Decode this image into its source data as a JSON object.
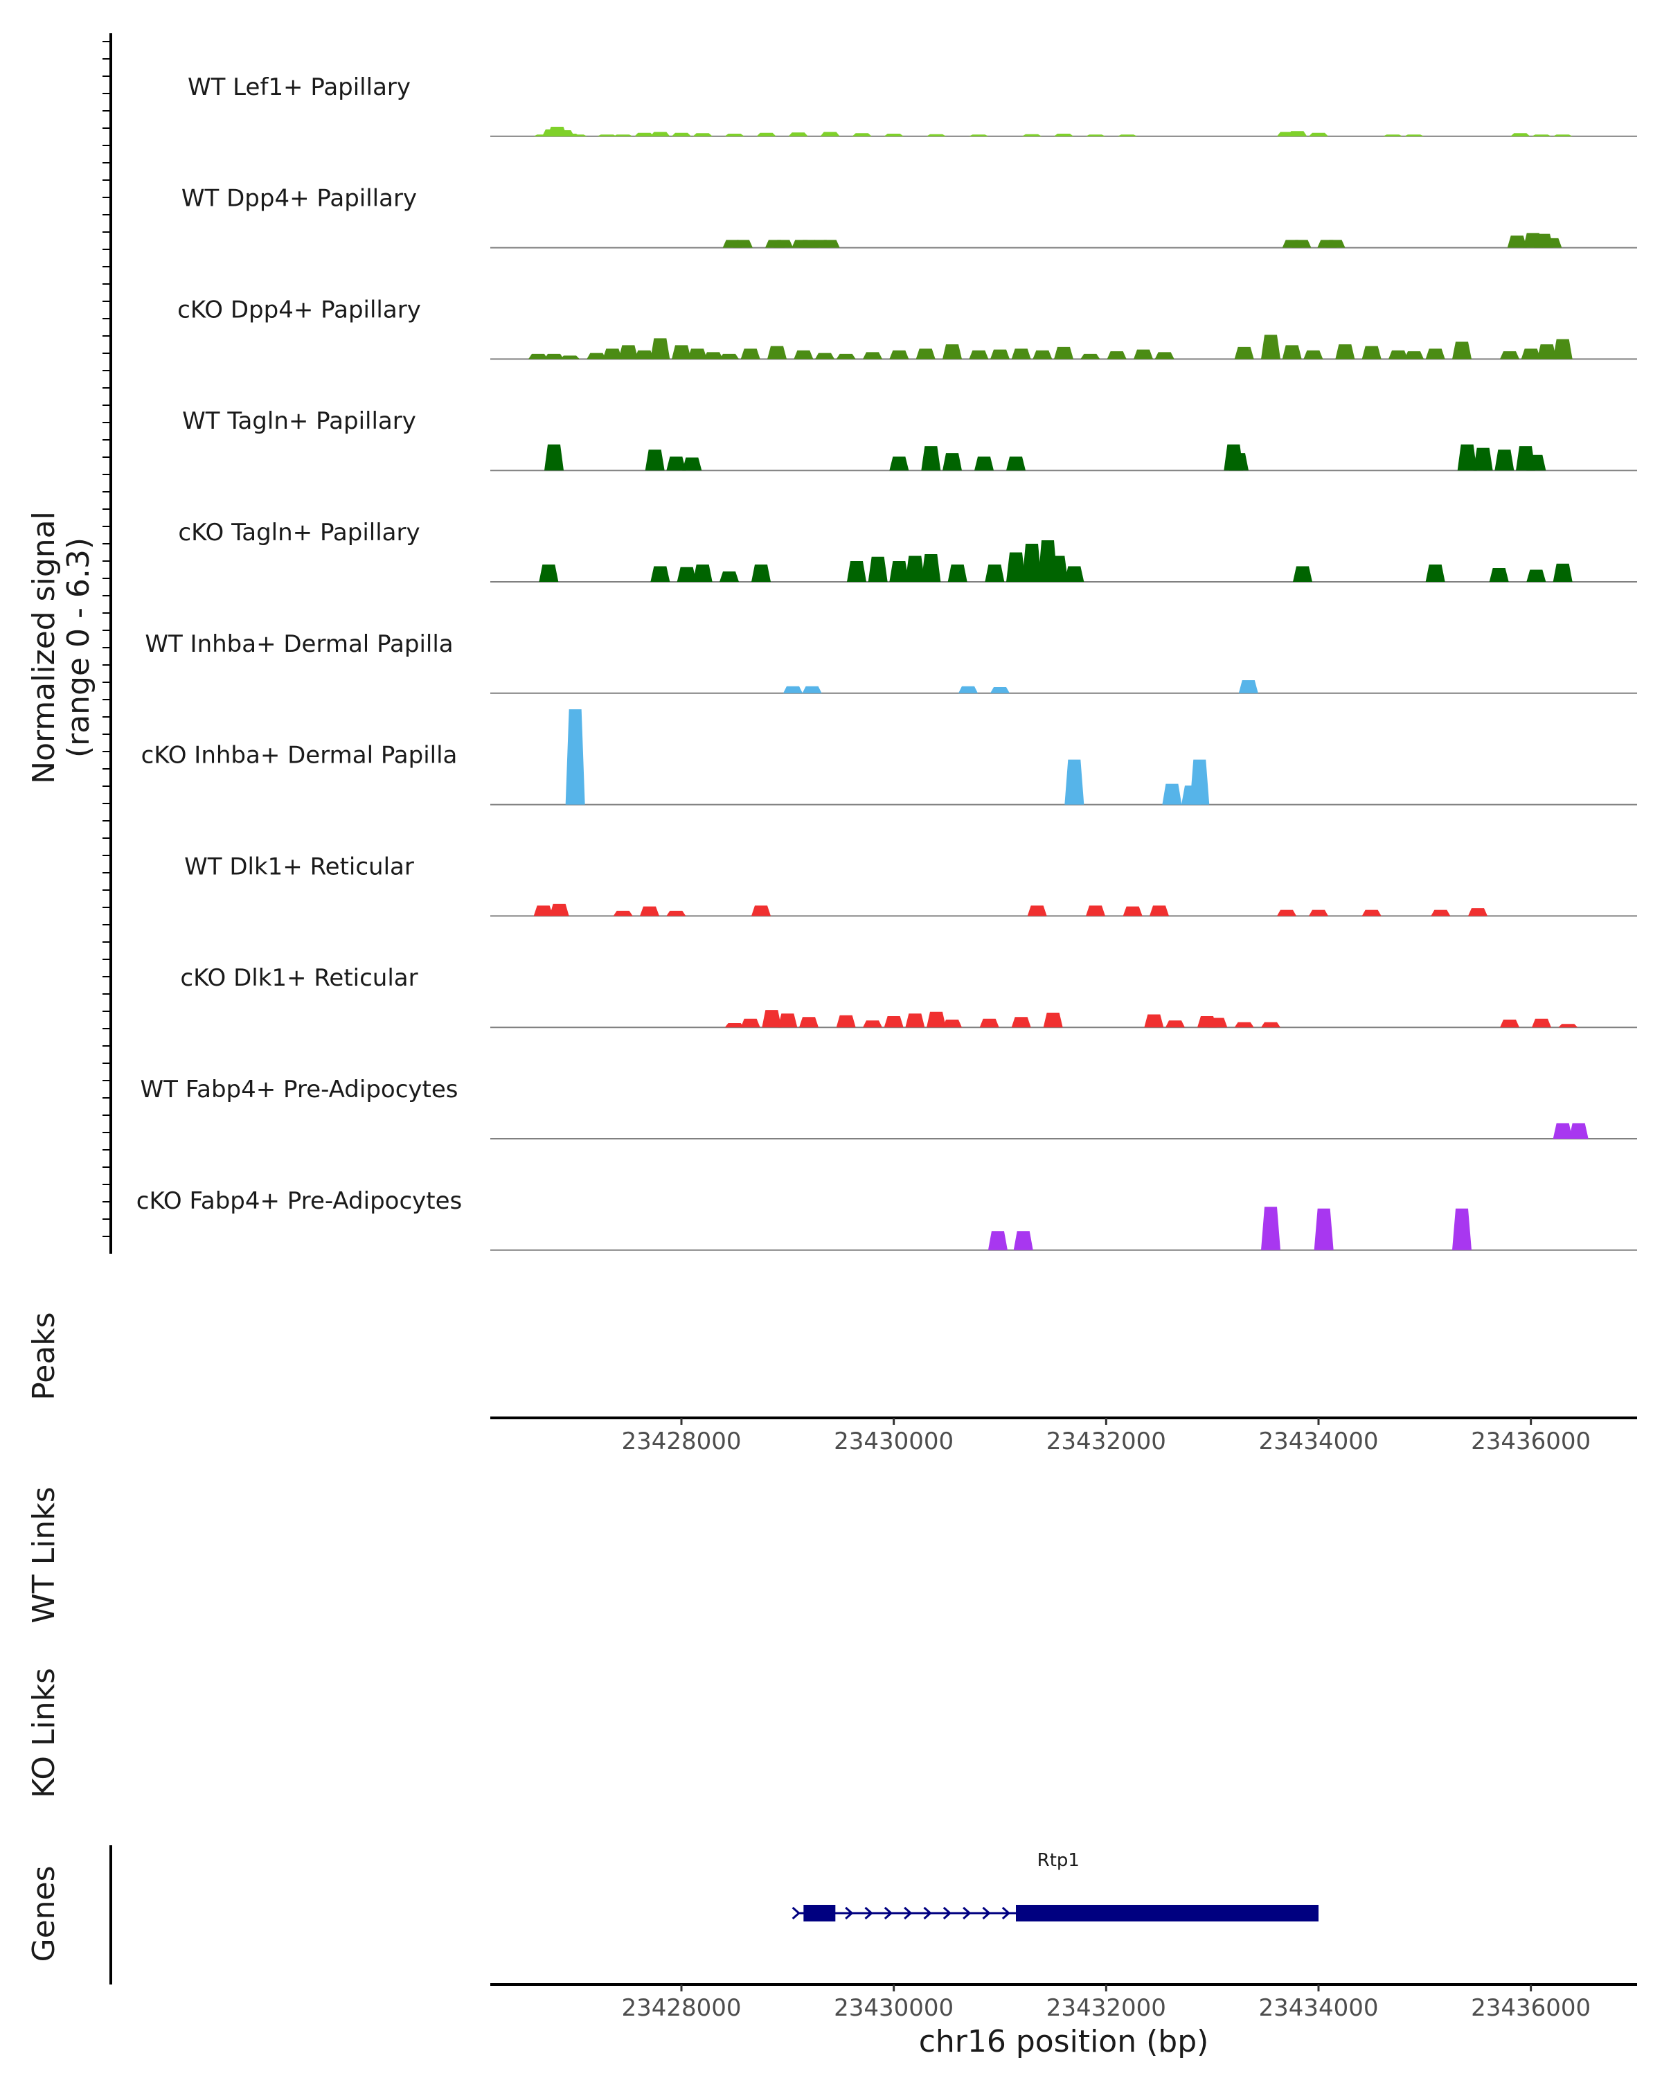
{
  "chart_data": {
    "type": "area",
    "title": "",
    "chromosome": "chr16",
    "xlabel": "chr16 position (bp)",
    "ylabel_line1": "Normalized signal",
    "ylabel_line2": "(range 0 - 6.3)",
    "xlim": [
      23426200,
      23437000
    ],
    "x_ticks": [
      23428000,
      23430000,
      23432000,
      23434000,
      23436000
    ],
    "x_tick_labels": [
      "23428000",
      "23430000",
      "23432000",
      "23434000",
      "23436000"
    ],
    "ymax": 6.3,
    "panel_labels": {
      "peaks": "Peaks",
      "wt_links": "WT Links",
      "ko_links": "KO Links",
      "genes": "Genes"
    },
    "series": [
      {
        "name": "WT Lef1+ Papillary",
        "color": "#7fd12a",
        "x": [
          23426700,
          23426780,
          23426830,
          23426900,
          23426950,
          23427020,
          23427300,
          23427450,
          23427650,
          23427800,
          23428000,
          23428200,
          23428500,
          23428800,
          23429100,
          23429400,
          23429700,
          23430000,
          23430400,
          23430800,
          23431300,
          23431600,
          23431900,
          23432200,
          23433700,
          23433800,
          23434000,
          23434700,
          23434900,
          23435900,
          23436100,
          23436300
        ],
        "values": [
          0.1,
          0.4,
          0.55,
          0.35,
          0.15,
          0.1,
          0.1,
          0.1,
          0.2,
          0.25,
          0.2,
          0.18,
          0.15,
          0.2,
          0.22,
          0.25,
          0.18,
          0.15,
          0.12,
          0.1,
          0.12,
          0.15,
          0.1,
          0.1,
          0.25,
          0.3,
          0.2,
          0.1,
          0.1,
          0.18,
          0.1,
          0.1
        ]
      },
      {
        "name": "WT Dpp4+ Papillary",
        "color": "#4b8c14",
        "x": [
          23428480,
          23428580,
          23428880,
          23428960,
          23429130,
          23429200,
          23429310,
          23429400,
          23433750,
          23433840,
          23434080,
          23434160,
          23435870,
          23436020,
          23436120,
          23436200
        ],
        "values": [
          0.45,
          0.45,
          0.45,
          0.45,
          0.45,
          0.45,
          0.45,
          0.45,
          0.45,
          0.45,
          0.45,
          0.45,
          0.7,
          0.85,
          0.8,
          0.55
        ]
      },
      {
        "name": "cKO Dpp4+ Papillary",
        "color": "#4b8c14",
        "x": [
          23426650,
          23426800,
          23426950,
          23427200,
          23427350,
          23427500,
          23427650,
          23427800,
          23428000,
          23428150,
          23428300,
          23428450,
          23428650,
          23428900,
          23429150,
          23429350,
          23429550,
          23429800,
          23430050,
          23430300,
          23430550,
          23430800,
          23431000,
          23431200,
          23431400,
          23431600,
          23431850,
          23432100,
          23432350,
          23432550,
          23433300,
          23433550,
          23433750,
          23433950,
          23434250,
          23434500,
          23434750,
          23434900,
          23435100,
          23435350,
          23435800,
          23436000,
          23436150,
          23436300
        ],
        "values": [
          0.3,
          0.3,
          0.2,
          0.35,
          0.6,
          0.8,
          0.5,
          1.2,
          0.8,
          0.6,
          0.4,
          0.3,
          0.6,
          0.75,
          0.5,
          0.35,
          0.3,
          0.4,
          0.5,
          0.6,
          0.85,
          0.5,
          0.55,
          0.6,
          0.5,
          0.7,
          0.3,
          0.45,
          0.55,
          0.4,
          0.7,
          1.4,
          0.8,
          0.5,
          0.85,
          0.75,
          0.5,
          0.45,
          0.6,
          1.0,
          0.45,
          0.6,
          0.85,
          1.15
        ]
      },
      {
        "name": "WT Tagln+ Papillary",
        "color": "#006400",
        "x": [
          23426800,
          23427750,
          23427950,
          23428100,
          23430050,
          23430350,
          23430550,
          23430850,
          23431150,
          23433200,
          23433250,
          23435400,
          23435550,
          23435750,
          23435950,
          23436050
        ],
        "values": [
          1.5,
          1.2,
          0.8,
          0.75,
          0.8,
          1.4,
          1.0,
          0.8,
          0.8,
          1.5,
          1.0,
          1.5,
          1.3,
          1.2,
          1.4,
          0.9
        ]
      },
      {
        "name": "cKO Tagln+ Papillary",
        "color": "#006400",
        "x": [
          23426750,
          23427800,
          23428050,
          23428200,
          23428450,
          23428750,
          23429650,
          23429850,
          23430050,
          23430200,
          23430350,
          23430600,
          23430950,
          23431150,
          23431300,
          23431450,
          23431550,
          23431700,
          23433850,
          23435100,
          23435700,
          23436050,
          23436300
        ],
        "values": [
          1.0,
          0.9,
          0.85,
          1.0,
          0.6,
          1.0,
          1.2,
          1.45,
          1.2,
          1.5,
          1.6,
          1.0,
          1.0,
          1.7,
          2.2,
          2.4,
          1.5,
          0.9,
          0.9,
          1.0,
          0.8,
          0.7,
          1.05
        ]
      },
      {
        "name": "WT Inhba+ Dermal Papilla",
        "color": "#56b4e9",
        "x": [
          23429050,
          23429230,
          23430700,
          23431000,
          23433340
        ],
        "values": [
          0.4,
          0.4,
          0.4,
          0.35,
          0.75
        ]
      },
      {
        "name": "cKO Inhba+ Dermal Papilla",
        "color": "#56b4e9",
        "x": [
          23427000,
          23431700,
          23432620,
          23432800,
          23432880
        ],
        "values": [
          5.5,
          2.6,
          1.2,
          1.1,
          2.6
        ]
      },
      {
        "name": "WT Dlk1+ Reticular",
        "color": "#f03030",
        "x": [
          23426700,
          23426850,
          23427450,
          23427700,
          23427950,
          23428750,
          23431350,
          23431900,
          23432250,
          23432500,
          23433700,
          23434000,
          23434500,
          23435150,
          23435500
        ],
        "values": [
          0.6,
          0.7,
          0.3,
          0.55,
          0.3,
          0.6,
          0.6,
          0.6,
          0.55,
          0.6,
          0.35,
          0.35,
          0.35,
          0.35,
          0.45
        ]
      },
      {
        "name": "cKO Dlk1+ Reticular",
        "color": "#f03030",
        "x": [
          23428500,
          23428650,
          23428850,
          23429000,
          23429200,
          23429550,
          23429800,
          23430000,
          23430200,
          23430400,
          23430550,
          23430900,
          23431200,
          23431500,
          23432450,
          23432650,
          23432950,
          23433050,
          23433300,
          23433550,
          23435800,
          23436100,
          23436350
        ],
        "values": [
          0.25,
          0.5,
          1.0,
          0.8,
          0.6,
          0.7,
          0.4,
          0.65,
          0.8,
          0.9,
          0.45,
          0.5,
          0.6,
          0.85,
          0.75,
          0.4,
          0.65,
          0.55,
          0.3,
          0.3,
          0.45,
          0.5,
          0.2
        ]
      },
      {
        "name": "WT Fabp4+ Pre-Adipocytes",
        "color": "#a837f0",
        "x": [
          23436300,
          23436450
        ],
        "values": [
          0.9,
          0.9
        ]
      },
      {
        "name": "cKO Fabp4+ Pre-Adipocytes",
        "color": "#a837f0",
        "x": [
          23430980,
          23431220,
          23433550,
          23434050,
          23435350
        ],
        "values": [
          1.1,
          1.1,
          2.5,
          2.4,
          2.4
        ]
      }
    ],
    "gene": {
      "name": "Rtp1",
      "color": "#000080",
      "strand": "+",
      "start": 23429100,
      "end": 23434000,
      "exons": [
        [
          23429150,
          23429450
        ],
        [
          23431150,
          23434000
        ]
      ]
    }
  }
}
